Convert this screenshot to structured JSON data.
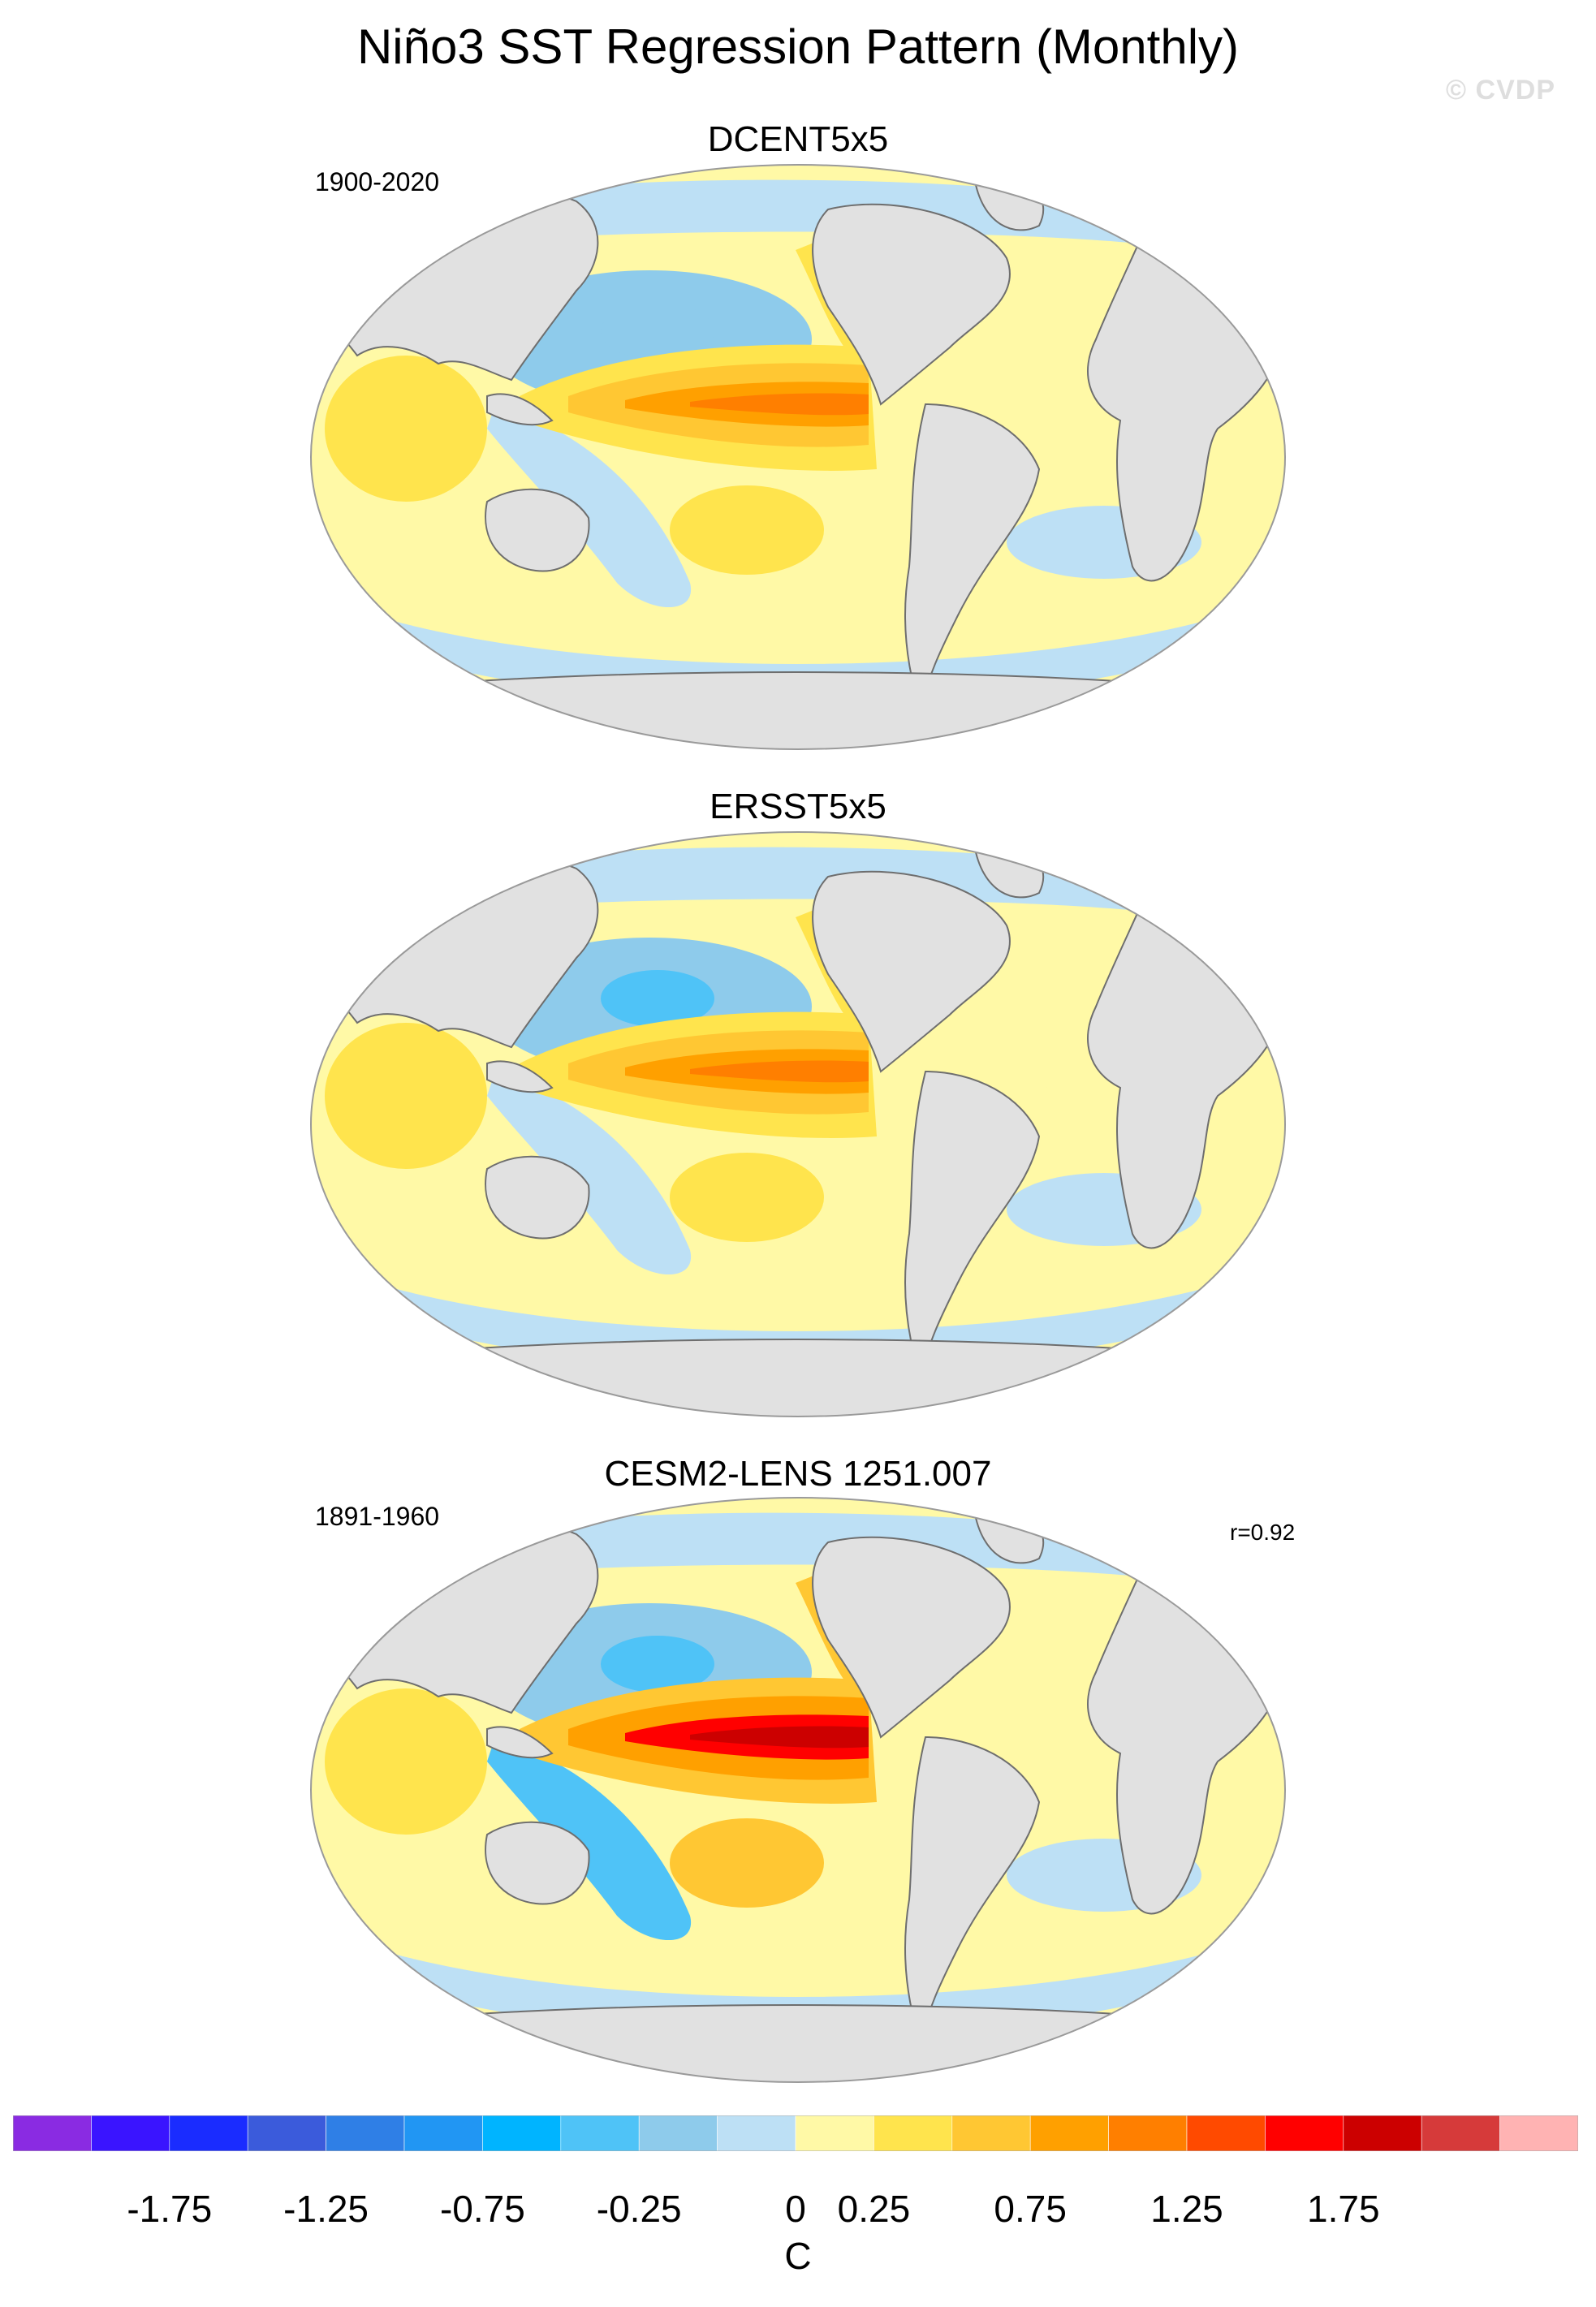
{
  "title": "Niño3 SST Regression Pattern (Monthly)",
  "credit": "© CVDP",
  "colors": {
    "land": "#e1e1e1",
    "coast": "#6e6e6e",
    "scale": [
      "#8a2be2",
      "#3a14ff",
      "#1a2cff",
      "#3b5bdb",
      "#2f7fe6",
      "#2196f3",
      "#00b4ff",
      "#4fc3f7",
      "#8ecbeb",
      "#bde0f5",
      "#fff9a6",
      "#ffe44d",
      "#ffc733",
      "#ffa000",
      "#ff7f00",
      "#ff4a00",
      "#ff0000",
      "#cc0000",
      "#d63a3a",
      "#ffb3b3"
    ]
  },
  "panels": [
    {
      "title": "DCENT5x5",
      "period": "1900-2020",
      "stat": "",
      "pattern": {
        "eq_peak": "#ff7f00",
        "eq_core": "#ffa000",
        "eq_outer": "#ffc733",
        "eq_edge": "#ffe44d",
        "north_anom": "#8ecbeb",
        "north_anom_core": "#8ecbeb",
        "south_pos": "#ffe44d",
        "west_neg": "#bde0f5",
        "indian": "#ffe44d",
        "atlantic": "#fff9a6"
      }
    },
    {
      "title": "ERSST5x5",
      "period": "",
      "stat": "",
      "pattern": {
        "eq_peak": "#ff7f00",
        "eq_core": "#ffa000",
        "eq_outer": "#ffc733",
        "eq_edge": "#ffe44d",
        "north_anom": "#8ecbeb",
        "north_anom_core": "#4fc3f7",
        "south_pos": "#ffe44d",
        "west_neg": "#bde0f5",
        "indian": "#ffe44d",
        "atlantic": "#fff9a6"
      }
    },
    {
      "title": "CESM2-LENS 1251.007",
      "period": "1891-1960",
      "stat": "r=0.92",
      "pattern": {
        "eq_peak": "#cc0000",
        "eq_core": "#ff0000",
        "eq_outer": "#ffa000",
        "eq_edge": "#ffc733",
        "north_anom": "#8ecbeb",
        "north_anom_core": "#4fc3f7",
        "south_pos": "#ffc733",
        "west_neg": "#4fc3f7",
        "indian": "#ffe44d",
        "atlantic": "#fff9a6"
      }
    }
  ],
  "colorbar": {
    "labels": [
      "-1.75",
      "-1.25",
      "-0.75",
      "-0.25",
      "0",
      "0.25",
      "0.75",
      "1.25",
      "1.75"
    ],
    "label_bins": [
      2,
      4,
      6,
      8,
      10,
      11,
      13,
      15,
      17
    ],
    "units": "C"
  }
}
